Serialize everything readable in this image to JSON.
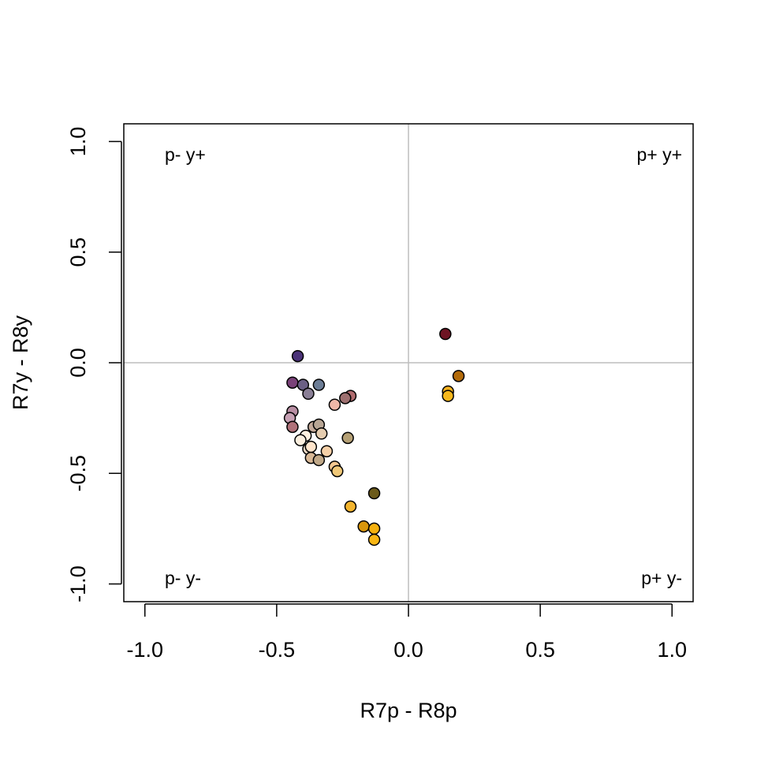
{
  "chart_data": {
    "type": "scatter",
    "title": "",
    "xlabel": "R7p - R8p",
    "ylabel": "R7y - R8y",
    "xlim": [
      -1.08,
      1.08
    ],
    "ylim": [
      -1.08,
      1.08
    ],
    "x_ticks": [
      -1.0,
      -0.5,
      0.0,
      0.5,
      1.0
    ],
    "x_tick_labels": [
      "-1.0",
      "-0.5",
      "0.0",
      "0.5",
      "1.0"
    ],
    "y_ticks": [
      -1.0,
      -0.5,
      0.0,
      0.5,
      1.0
    ],
    "y_tick_labels": [
      "-1.0",
      "-0.5",
      "0.0",
      "0.5",
      "1.0"
    ],
    "reference_lines": {
      "x": 0,
      "y": 0,
      "color": "#bebebe"
    },
    "grid": false,
    "quadrant_labels": {
      "top_left": "p- y+",
      "top_right": "p+ y+",
      "bottom_left": "p- y-",
      "bottom_right": "p+ y-"
    },
    "points": [
      {
        "x": 0.14,
        "y": 0.13,
        "color": "#6e1423"
      },
      {
        "x": 0.19,
        "y": -0.06,
        "color": "#b36b0a"
      },
      {
        "x": 0.15,
        "y": -0.13,
        "color": "#f2b01e"
      },
      {
        "x": 0.15,
        "y": -0.15,
        "color": "#f7b81c"
      },
      {
        "x": -0.42,
        "y": 0.03,
        "color": "#4a3278"
      },
      {
        "x": -0.44,
        "y": -0.09,
        "color": "#7a4279"
      },
      {
        "x": -0.4,
        "y": -0.1,
        "color": "#6b5f85"
      },
      {
        "x": -0.38,
        "y": -0.14,
        "color": "#8a7f96"
      },
      {
        "x": -0.34,
        "y": -0.1,
        "color": "#6c7d96"
      },
      {
        "x": -0.22,
        "y": -0.15,
        "color": "#b06b6e"
      },
      {
        "x": -0.24,
        "y": -0.16,
        "color": "#9e7070"
      },
      {
        "x": -0.28,
        "y": -0.19,
        "color": "#f0b8a8"
      },
      {
        "x": -0.44,
        "y": -0.22,
        "color": "#b88ea3"
      },
      {
        "x": -0.45,
        "y": -0.25,
        "color": "#c6a0b3"
      },
      {
        "x": -0.44,
        "y": -0.29,
        "color": "#b0727a"
      },
      {
        "x": -0.36,
        "y": -0.29,
        "color": "#c4aa9a"
      },
      {
        "x": -0.34,
        "y": -0.28,
        "color": "#b8a695"
      },
      {
        "x": -0.33,
        "y": -0.32,
        "color": "#e6cdb0"
      },
      {
        "x": -0.39,
        "y": -0.33,
        "color": "#fff0e0"
      },
      {
        "x": -0.41,
        "y": -0.35,
        "color": "#fbeede"
      },
      {
        "x": -0.23,
        "y": -0.34,
        "color": "#b5a075"
      },
      {
        "x": -0.38,
        "y": -0.39,
        "color": "#e8d5c0"
      },
      {
        "x": -0.37,
        "y": -0.38,
        "color": "#ffe5cc"
      },
      {
        "x": -0.31,
        "y": -0.4,
        "color": "#f5d0a8"
      },
      {
        "x": -0.37,
        "y": -0.43,
        "color": "#d8b896"
      },
      {
        "x": -0.34,
        "y": -0.44,
        "color": "#c0a888"
      },
      {
        "x": -0.28,
        "y": -0.47,
        "color": "#f5c890"
      },
      {
        "x": -0.27,
        "y": -0.49,
        "color": "#f0c878"
      },
      {
        "x": -0.13,
        "y": -0.59,
        "color": "#6b5a1a"
      },
      {
        "x": -0.22,
        "y": -0.65,
        "color": "#f2b42e"
      },
      {
        "x": -0.17,
        "y": -0.74,
        "color": "#d8960c"
      },
      {
        "x": -0.13,
        "y": -0.75,
        "color": "#f5b10f"
      },
      {
        "x": -0.13,
        "y": -0.8,
        "color": "#f8b614"
      }
    ]
  }
}
